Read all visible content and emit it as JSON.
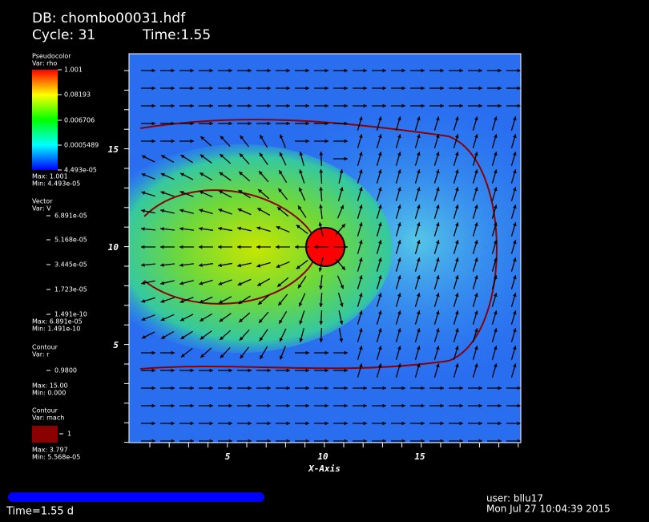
{
  "header": {
    "database": "DB: chombo00031.hdf",
    "cycle": "Cycle: 31",
    "time": "Time:1.55"
  },
  "legends": [
    {
      "title": "Pseudocolor",
      "variable": "Var: rho",
      "labels": [
        "1.001",
        "0.08193",
        "0.006706",
        "0.0005489",
        "4.493e-05"
      ],
      "max": "Max: 1.001",
      "min": "Min: 4.493e-05"
    },
    {
      "title": "Vector",
      "variable": "Var: V",
      "labels": [
        "6.891e-05",
        "5.168e-05",
        "3.445e-05",
        "1.723e-05",
        "1.491e-10"
      ],
      "max": "Max: 6.891e-05",
      "min": "Min: 1.491e-10"
    },
    {
      "title": "Contour",
      "variable": "Var: r",
      "labels": [
        "0.9800"
      ],
      "max": "Max: 15.00",
      "min": "Min: 0.000"
    },
    {
      "title": "Contour",
      "variable": "Var: mach",
      "labels": [
        "1"
      ],
      "max": "Max: 3.797",
      "min": "Min: 5.568e-05"
    }
  ],
  "axes": {
    "x_title": "X-Axis",
    "x_ticks": [
      "5",
      "10",
      "15"
    ],
    "y_ticks": [
      "15",
      "10",
      "5"
    ]
  },
  "footer": {
    "time": "Time=1.55 d",
    "user": "user: bllu17",
    "date": "Mon Jul 27 10:04:39 2015"
  }
}
